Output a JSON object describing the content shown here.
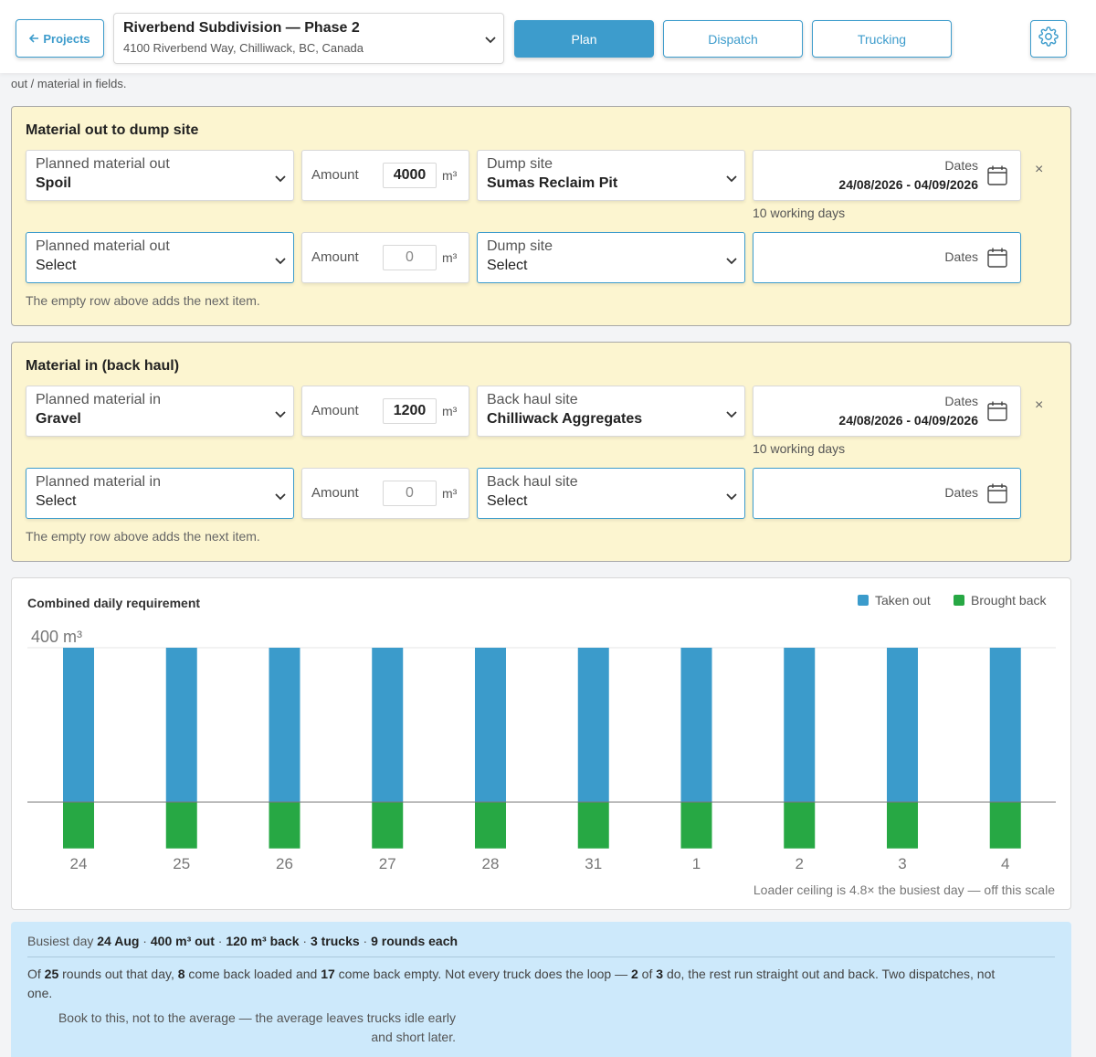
{
  "header": {
    "back_label": "Projects",
    "project_name": "Riverbend Subdivision — Phase 2",
    "project_address": "4100 Riverbend Way, Chilliwack, BC, Canada",
    "tabs": [
      {
        "label": "Plan",
        "active": true
      },
      {
        "label": "Dispatch",
        "active": false
      },
      {
        "label": "Trucking",
        "active": false
      }
    ]
  },
  "cutoff_text": "out / material in fields.",
  "material_out": {
    "title": "Material out to dump site",
    "rows": [
      {
        "material_label": "Planned material out",
        "material_value": "Spoil",
        "amount_label": "Amount",
        "amount": "4000",
        "unit": "m³",
        "site_label": "Dump site",
        "site_value": "Sumas Reclaim Pit",
        "dates_label": "Dates",
        "dates_value": "24/08/2026 - 04/09/2026",
        "working_days": "10 working days",
        "remove": "×"
      },
      {
        "material_label": "Planned material out",
        "material_value": "Select",
        "amount_label": "Amount",
        "amount": "0",
        "unit": "m³",
        "site_label": "Dump site",
        "site_value": "Select",
        "dates_label": "Dates"
      }
    ],
    "hint": "The empty row above adds the next item."
  },
  "material_in": {
    "title": "Material in (back haul)",
    "rows": [
      {
        "material_label": "Planned material in",
        "material_value": "Gravel",
        "amount_label": "Amount",
        "amount": "1200",
        "unit": "m³",
        "site_label": "Back haul site",
        "site_value": "Chilliwack Aggregates",
        "dates_label": "Dates",
        "dates_value": "24/08/2026 - 04/09/2026",
        "working_days": "10 working days",
        "remove": "×"
      },
      {
        "material_label": "Planned material in",
        "material_value": "Select",
        "amount_label": "Amount",
        "amount": "0",
        "unit": "m³",
        "site_label": "Back haul site",
        "site_value": "Select",
        "dates_label": "Dates"
      }
    ],
    "hint": "The empty row above adds the next item."
  },
  "chart_data": {
    "type": "bar",
    "title": "Combined daily requirement",
    "y_tick_label": "400 m³",
    "ylim": [
      -120,
      400
    ],
    "categories": [
      "24",
      "25",
      "26",
      "27",
      "28",
      "31",
      "1",
      "2",
      "3",
      "4"
    ],
    "series": [
      {
        "name": "Taken out",
        "color": "#3b9bcb",
        "values": [
          400,
          400,
          400,
          400,
          400,
          400,
          400,
          400,
          400,
          400
        ]
      },
      {
        "name": "Brought back",
        "color": "#27a844",
        "values": [
          120,
          120,
          120,
          120,
          120,
          120,
          120,
          120,
          120,
          120
        ]
      }
    ],
    "legend": "top-right",
    "note": "Loader ceiling is 4.8× the busiest day — off this scale"
  },
  "summary": {
    "line1": {
      "prefix": "Busiest day ",
      "day": "24 Aug",
      "sep1": " · ",
      "out": "400 m³ out",
      "sep2": " · ",
      "back": "120 m³ back",
      "sep3": " · ",
      "trucks": "3 trucks",
      "sep4": " · ",
      "rounds": "9 rounds each"
    },
    "line2": {
      "t1": "Of ",
      "n1": "25",
      "t2": " rounds out that day, ",
      "n2": "8",
      "t3": " come back loaded and ",
      "n3": "17",
      "t4": " come back empty. Not every truck does the loop — ",
      "n4": "2",
      "t5": " of ",
      "n5": "3",
      "t6": " do, the rest run straight out and back. Two dispatches, not one."
    },
    "line3": "Book to this, not to the average — the average leaves trucks idle early and short later."
  }
}
